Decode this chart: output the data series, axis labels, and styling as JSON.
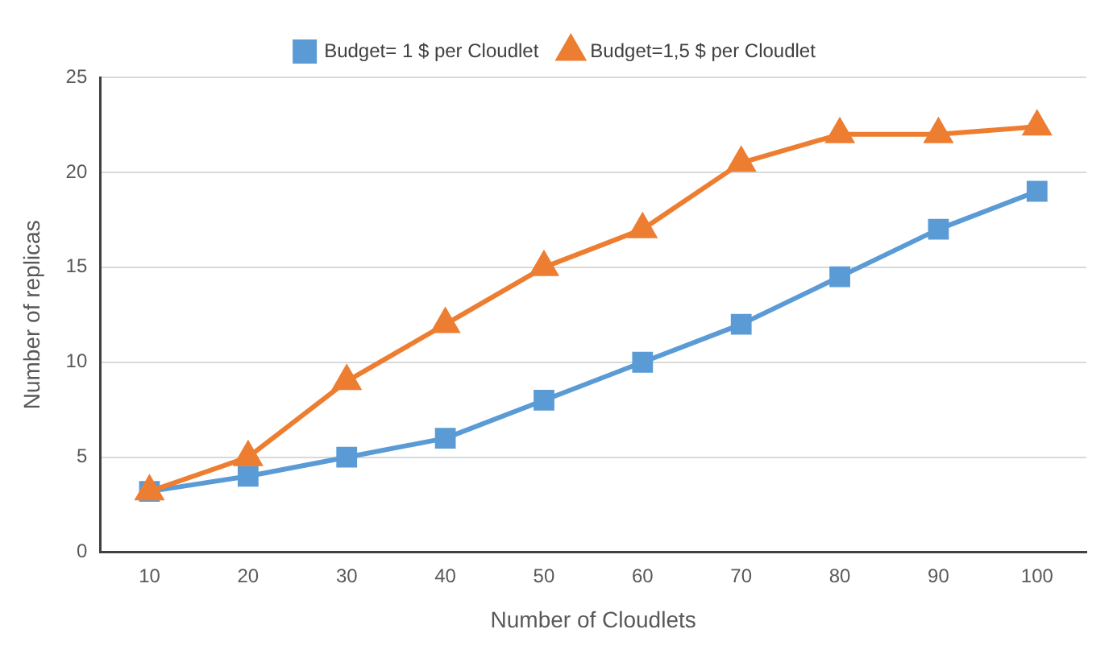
{
  "chart_data": {
    "type": "line",
    "xlabel": "Number of Cloudlets",
    "ylabel": "Number of replicas",
    "categories": [
      "10",
      "20",
      "30",
      "40",
      "50",
      "60",
      "70",
      "80",
      "90",
      "100"
    ],
    "series": [
      {
        "name": "Budget= 1 $ per Cloudlet",
        "color": "#5b9bd5",
        "marker": "square",
        "values": [
          3.2,
          4,
          5,
          6,
          8,
          10,
          12,
          14.5,
          17,
          19
        ]
      },
      {
        "name": "Budget=1,5 $ per Cloudlet",
        "color": "#ed7d31",
        "marker": "triangle",
        "values": [
          3.2,
          5,
          9,
          12,
          15,
          17,
          20.5,
          22,
          22,
          22.4
        ]
      }
    ],
    "ylim": [
      0,
      25
    ],
    "yticks": [
      0,
      5,
      10,
      15,
      20,
      25
    ],
    "grid": "y",
    "legend": "top",
    "line_style": "solid"
  }
}
